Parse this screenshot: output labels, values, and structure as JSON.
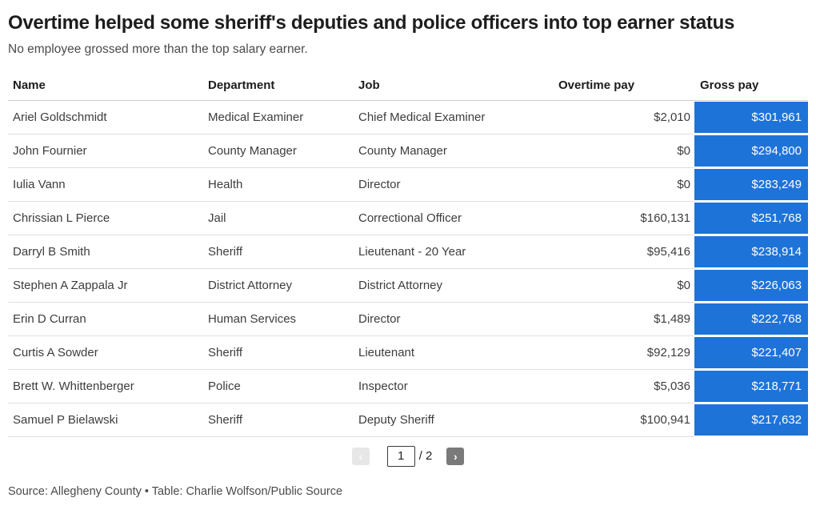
{
  "chart_data": {
    "type": "table",
    "title": "Overtime helped some sheriff's deputies and police officers into top earner status",
    "subtitle": "No employee grossed more than the top salary earner.",
    "columns": [
      "Name",
      "Department",
      "Job",
      "Overtime pay",
      "Gross pay"
    ],
    "rows": [
      {
        "name": "Ariel Goldschmidt",
        "department": "Medical Examiner",
        "job": "Chief Medical Examiner",
        "overtime_pay": 2010,
        "gross_pay": 301961,
        "overtime_display": "$2,010",
        "gross_display": "$301,961"
      },
      {
        "name": "John Fournier",
        "department": "County Manager",
        "job": "County Manager",
        "overtime_pay": 0,
        "gross_pay": 294800,
        "overtime_display": "$0",
        "gross_display": "$294,800"
      },
      {
        "name": "Iulia Vann",
        "department": "Health",
        "job": "Director",
        "overtime_pay": 0,
        "gross_pay": 283249,
        "overtime_display": "$0",
        "gross_display": "$283,249"
      },
      {
        "name": "Chrissian L Pierce",
        "department": "Jail",
        "job": "Correctional Officer",
        "overtime_pay": 160131,
        "gross_pay": 251768,
        "overtime_display": "$160,131",
        "gross_display": "$251,768"
      },
      {
        "name": "Darryl B Smith",
        "department": "Sheriff",
        "job": "Lieutenant - 20 Year",
        "overtime_pay": 95416,
        "gross_pay": 238914,
        "overtime_display": "$95,416",
        "gross_display": "$238,914"
      },
      {
        "name": "Stephen A Zappala Jr",
        "department": "District Attorney",
        "job": "District Attorney",
        "overtime_pay": 0,
        "gross_pay": 226063,
        "overtime_display": "$0",
        "gross_display": "$226,063"
      },
      {
        "name": "Erin D Curran",
        "department": "Human Services",
        "job": "Director",
        "overtime_pay": 1489,
        "gross_pay": 222768,
        "overtime_display": "$1,489",
        "gross_display": "$222,768"
      },
      {
        "name": "Curtis A Sowder",
        "department": "Sheriff",
        "job": "Lieutenant",
        "overtime_pay": 92129,
        "gross_pay": 221407,
        "overtime_display": "$92,129",
        "gross_display": "$221,407"
      },
      {
        "name": "Brett W. Whittenberger",
        "department": "Police",
        "job": "Inspector",
        "overtime_pay": 5036,
        "gross_pay": 218771,
        "overtime_display": "$5,036",
        "gross_display": "$218,771"
      },
      {
        "name": "Samuel P Bielawski",
        "department": "Sheriff",
        "job": "Deputy Sheriff",
        "overtime_pay": 100941,
        "gross_pay": 217632,
        "overtime_display": "$100,941",
        "gross_display": "$217,632"
      }
    ],
    "gross_pay_bar_color": "#1e73d8",
    "layout_hints": {
      "gross_pay_cell_style": "full-width blue bar, white right-aligned text",
      "grid": "horizontal row separators only"
    },
    "note": "Source: Allegheny County • Table: Charlie Wolfson/Public Source"
  },
  "pagination": {
    "prev_label": "‹",
    "page_value": "1",
    "total_label": "/ 2",
    "next_label": "›"
  }
}
